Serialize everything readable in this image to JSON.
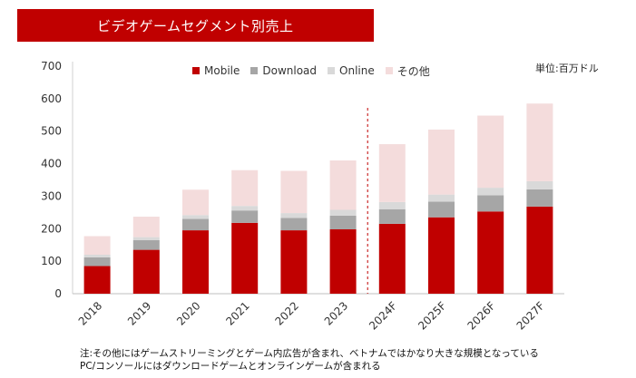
{
  "header": {
    "title": "ビデオゲームセグメント別売上"
  },
  "unit_label": "単位:百万ドル",
  "notes": {
    "line1": "注:その他にはゲームストリーミングとゲーム内広告が含まれ、ベトナムではかなり大きな規模となっている",
    "line2": "PC/コンソールにはダウンロードゲームとオンラインゲームが含まれる"
  },
  "colors": {
    "mobile": "#c00000",
    "download": "#a6a6a6",
    "online": "#d9d9d9",
    "other": "#f4dcdc",
    "banner": "#c00000",
    "forecast_line": "#c00000"
  },
  "chart_data": {
    "type": "bar",
    "stacked": true,
    "categories": [
      "2018",
      "2019",
      "2020",
      "2021",
      "2022",
      "2023",
      "2024F",
      "2025F",
      "2026F",
      "2027F"
    ],
    "series": [
      {
        "name": "Mobile",
        "key": "mobile",
        "values": [
          85,
          135,
          195,
          218,
          195,
          198,
          215,
          235,
          253,
          268
        ]
      },
      {
        "name": "Download",
        "key": "download",
        "values": [
          27,
          30,
          35,
          38,
          38,
          42,
          45,
          48,
          50,
          53
        ]
      },
      {
        "name": "Online",
        "key": "online",
        "values": [
          8,
          9,
          12,
          14,
          15,
          18,
          22,
          22,
          23,
          25
        ]
      },
      {
        "name": "その他",
        "key": "other",
        "values": [
          57,
          63,
          78,
          110,
          130,
          152,
          178,
          200,
          222,
          239
        ]
      }
    ],
    "yticks": [
      0,
      100,
      200,
      300,
      400,
      500,
      600,
      700
    ],
    "ylim": [
      0,
      700
    ],
    "forecast_divider_after": "2023",
    "legend_position": "top"
  }
}
